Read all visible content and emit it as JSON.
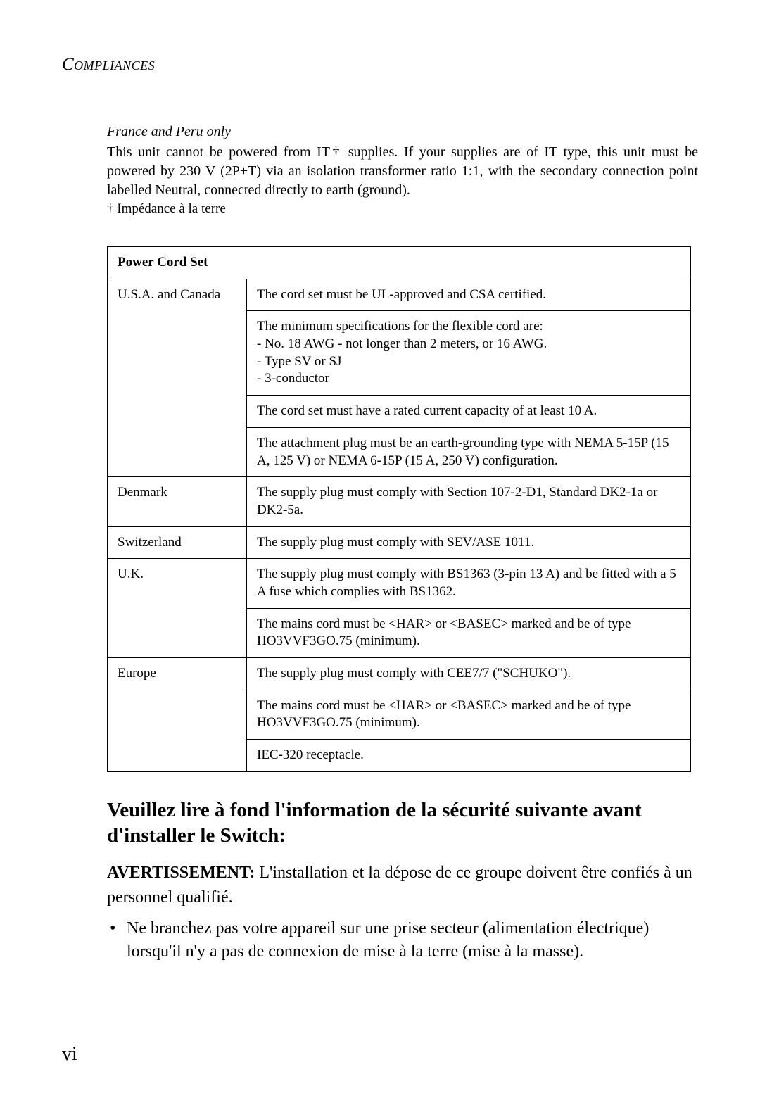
{
  "running_head": "Compliances",
  "france_peru": {
    "title": "France and Peru only",
    "body": "This unit cannot be powered from IT† supplies. If your supplies are of IT type, this unit must be powered by 230 V (2P+T) via an isolation transformer ratio 1:1, with the secondary connection point labelled Neutral, connected directly to earth (ground).",
    "footnote": "† Impédance à la terre"
  },
  "table": {
    "header": "Power Cord Set",
    "rows": [
      {
        "country": "U.S.A. and Canada",
        "rowspan": 4,
        "cells": [
          "The cord set must be UL-approved and CSA certified.",
          "The minimum specifications for the flexible cord are:\n- No. 18 AWG - not longer than 2 meters, or 16 AWG.\n- Type SV or SJ\n- 3-conductor",
          "The cord set must have a rated current capacity of at least 10 A.",
          "The attachment plug must be an earth-grounding type with NEMA 5-15P (15 A, 125 V) or NEMA 6-15P (15 A, 250 V) configuration."
        ]
      },
      {
        "country": "Denmark",
        "rowspan": 1,
        "cells": [
          "The supply plug must comply with Section 107-2-D1, Standard DK2-1a or DK2-5a."
        ]
      },
      {
        "country": "Switzerland",
        "rowspan": 1,
        "cells": [
          "The supply plug must comply with SEV/ASE 1011."
        ]
      },
      {
        "country": "U.K.",
        "rowspan": 2,
        "cells": [
          "The supply plug must comply with BS1363 (3-pin 13 A) and be fitted with a 5 A fuse which complies with BS1362.",
          "The mains cord must be <HAR> or <BASEC> marked and be of type HO3VVF3GO.75 (minimum)."
        ]
      },
      {
        "country": "Europe",
        "rowspan": 3,
        "cells": [
          "The supply plug must comply with CEE7/7 (\"SCHUKO\").",
          "The mains cord must be <HAR> or <BASEC> marked and be of type HO3VVF3GO.75 (minimum).",
          "IEC-320 receptacle."
        ]
      }
    ]
  },
  "h2": "Veuillez lire à fond l'information de la sécurité suivante avant d'installer le Switch:",
  "warning": {
    "lead": "AVERTISSEMENT:",
    "rest": " L'installation et la dépose de ce groupe doivent être confiés à un personnel qualifié."
  },
  "bullets": [
    "Ne branchez pas votre appareil sur une prise secteur (alimentation électrique) lorsqu'il n'y a pas de connexion de mise à la terre (mise à la masse)."
  ],
  "page_number": "vi"
}
